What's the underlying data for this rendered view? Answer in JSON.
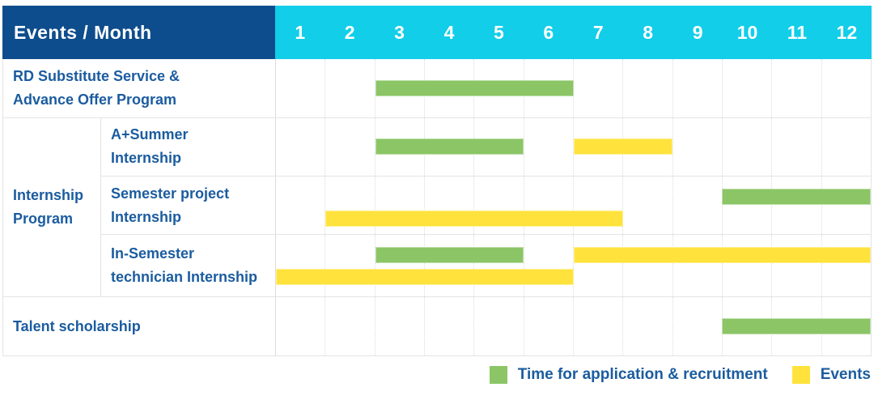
{
  "header": {
    "label": "Events / Month",
    "months": [
      "1",
      "2",
      "3",
      "4",
      "5",
      "6",
      "7",
      "8",
      "9",
      "10",
      "11",
      "12"
    ]
  },
  "rows": {
    "rd": {
      "lines": [
        "RD Substitute Service &",
        "Advance Offer Program"
      ]
    },
    "group": {
      "lines": [
        "Internship",
        "Program"
      ]
    },
    "asummer": {
      "lines": [
        "A+Summer",
        "Internship"
      ]
    },
    "semester": {
      "lines": [
        "Semester project",
        "Internship"
      ]
    },
    "insem": {
      "lines": [
        "In-Semester",
        "technician Internship"
      ]
    },
    "talent": {
      "lines": [
        "Talent scholarship"
      ]
    }
  },
  "legend": [
    {
      "label": "Time for application & recruitment",
      "type": "green"
    },
    {
      "label": "Events",
      "type": "yellow"
    }
  ],
  "colors": {
    "green": "#8bc566",
    "yellow": "#ffe33c",
    "header_bg": "#0e4d8d",
    "months_bg": "#12cee9",
    "text": "#1b5c9f",
    "grid": "#e4e4e4"
  },
  "chart_data": {
    "type": "gantt",
    "title": "Events / Month",
    "x": {
      "label": "Month",
      "ticks": [
        1,
        2,
        3,
        4,
        5,
        6,
        7,
        8,
        9,
        10,
        11,
        12
      ],
      "range": [
        1,
        12
      ]
    },
    "grid": "vertical dotted month separators, light horizontal row lines",
    "legend_position": "bottom-right",
    "legend": [
      {
        "name": "Time for application & recruitment",
        "color": "#8bc566"
      },
      {
        "name": "Events",
        "color": "#ffe33c"
      }
    ],
    "tasks": [
      {
        "id": "rd",
        "name": "RD Substitute Service & Advance Offer Program",
        "group": null,
        "bars": [
          {
            "type": "green",
            "meaning": "Time for application & recruitment",
            "start": 3,
            "end": 6,
            "lane": 0
          }
        ]
      },
      {
        "id": "asummer",
        "name": "A+Summer Internship",
        "group": "Internship Program",
        "bars": [
          {
            "type": "green",
            "meaning": "Time for application & recruitment",
            "start": 3,
            "end": 5,
            "lane": 0
          },
          {
            "type": "yellow",
            "meaning": "Events",
            "start": 7,
            "end": 8,
            "lane": 0
          }
        ]
      },
      {
        "id": "semester",
        "name": "Semester project Internship",
        "group": "Internship Program",
        "bars": [
          {
            "type": "green",
            "meaning": "Time for application & recruitment",
            "start": 10,
            "end": 12,
            "lane": 0
          },
          {
            "type": "yellow",
            "meaning": "Events",
            "start": 2,
            "end": 7,
            "lane": 1
          }
        ]
      },
      {
        "id": "insem",
        "name": "In-Semester technician Internship",
        "group": "Internship Program",
        "bars": [
          {
            "type": "green",
            "meaning": "Time for application & recruitment",
            "start": 3,
            "end": 5,
            "lane": 0
          },
          {
            "type": "yellow",
            "meaning": "Events",
            "start": 7,
            "end": 12,
            "lane": 0
          },
          {
            "type": "yellow",
            "meaning": "Events",
            "start": 1,
            "end": 6,
            "lane": 1
          }
        ]
      },
      {
        "id": "talent",
        "name": "Talent scholarship",
        "group": null,
        "bars": [
          {
            "type": "green",
            "meaning": "Time for application & recruitment",
            "start": 10,
            "end": 12,
            "lane": 0
          }
        ]
      }
    ]
  }
}
